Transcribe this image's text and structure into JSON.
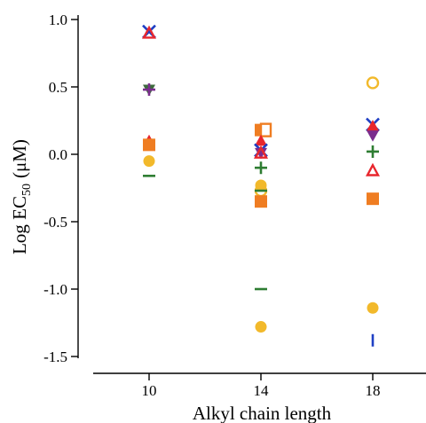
{
  "chart_data": {
    "type": "scatter",
    "xlabel": "Alkyl chain length",
    "ylabel_main": "Log EC",
    "ylabel_sub": "50",
    "ylabel_unit": "(μM)",
    "x_categories": [
      "10",
      "14",
      "18"
    ],
    "yticks": [
      "1.0",
      "0.5",
      "0.0",
      "-0.5",
      "-1.0",
      "-1.5"
    ],
    "ylim": [
      -1.5,
      1.0
    ],
    "grid": false,
    "colors": {
      "blue": "#1f3fc4",
      "red": "#e8262d",
      "green": "#2e7d32",
      "orange": "#ef7d22",
      "yellow": "#f2b92b",
      "purple": "#7b2d8e",
      "darkgreen": "#3d6b3d"
    },
    "points": [
      {
        "x": "10",
        "y": 0.91,
        "marker": "x",
        "color": "blue"
      },
      {
        "x": "10",
        "y": 0.9,
        "marker": "triangle-open",
        "color": "red"
      },
      {
        "x": "10",
        "y": 0.48,
        "marker": "triangle-down",
        "color": "darkgreen"
      },
      {
        "x": "10",
        "y": 0.48,
        "marker": "plus",
        "color": "purple"
      },
      {
        "x": "10",
        "y": 0.1,
        "marker": "triangle",
        "color": "red"
      },
      {
        "x": "10",
        "y": 0.07,
        "marker": "square",
        "color": "orange"
      },
      {
        "x": "10",
        "y": -0.05,
        "marker": "circle",
        "color": "yellow"
      },
      {
        "x": "10",
        "y": -0.16,
        "marker": "dash",
        "color": "green"
      },
      {
        "x": "14",
        "y": 0.18,
        "marker": "square",
        "color": "orange"
      },
      {
        "x": "14",
        "y": 0.18,
        "marker": "square-open",
        "color": "orange"
      },
      {
        "x": "14",
        "y": 0.1,
        "marker": "triangle",
        "color": "red"
      },
      {
        "x": "14",
        "y": 0.03,
        "marker": "x",
        "color": "blue"
      },
      {
        "x": "14",
        "y": 0.01,
        "marker": "triangle-down",
        "color": "purple"
      },
      {
        "x": "14",
        "y": 0.01,
        "marker": "triangle-open",
        "color": "red"
      },
      {
        "x": "14",
        "y": -0.1,
        "marker": "plus",
        "color": "green"
      },
      {
        "x": "14",
        "y": -0.23,
        "marker": "circle",
        "color": "yellow"
      },
      {
        "x": "14",
        "y": -0.27,
        "marker": "circle-open",
        "color": "yellow"
      },
      {
        "x": "14",
        "y": -0.27,
        "marker": "dash",
        "color": "green"
      },
      {
        "x": "14",
        "y": -0.35,
        "marker": "square",
        "color": "orange"
      },
      {
        "x": "14",
        "y": -1.0,
        "marker": "dash",
        "color": "green"
      },
      {
        "x": "14",
        "y": -1.28,
        "marker": "circle",
        "color": "yellow"
      },
      {
        "x": "18",
        "y": 0.53,
        "marker": "circle-open",
        "color": "yellow"
      },
      {
        "x": "18",
        "y": 0.22,
        "marker": "x",
        "color": "blue"
      },
      {
        "x": "18",
        "y": 0.21,
        "marker": "triangle",
        "color": "red"
      },
      {
        "x": "18",
        "y": 0.14,
        "marker": "triangle-down",
        "color": "purple"
      },
      {
        "x": "18",
        "y": 0.02,
        "marker": "plus",
        "color": "green"
      },
      {
        "x": "18",
        "y": -0.12,
        "marker": "triangle-open",
        "color": "red"
      },
      {
        "x": "18",
        "y": -0.33,
        "marker": "square",
        "color": "orange"
      },
      {
        "x": "18",
        "y": -1.14,
        "marker": "circle",
        "color": "yellow"
      },
      {
        "x": "18",
        "y": -1.38,
        "marker": "vbar",
        "color": "blue"
      }
    ]
  }
}
